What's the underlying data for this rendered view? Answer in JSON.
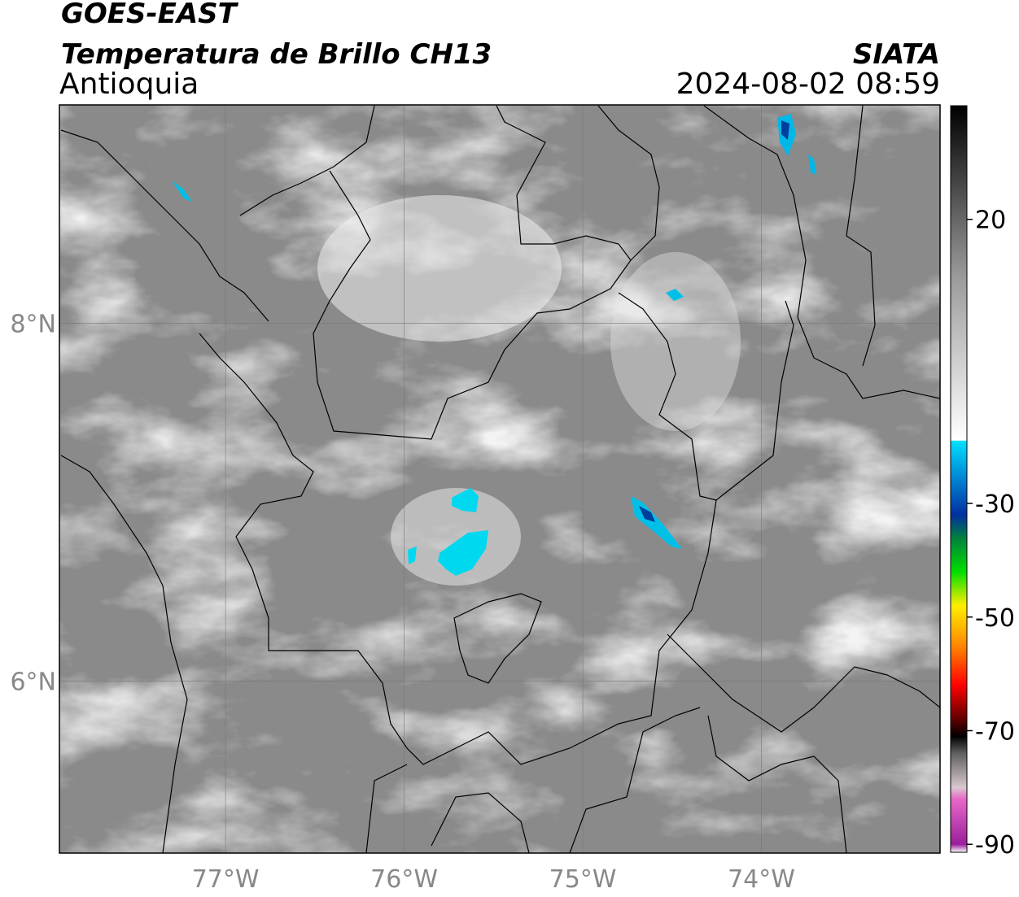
{
  "header": {
    "title": "GOES-EAST",
    "subtitle": "Temperatura de Brillo CH13",
    "region": "Antioquia",
    "source": "SIATA",
    "timestamp": "2024-08-02 08:59"
  },
  "map": {
    "xlim": [
      -77.93,
      -73.0
    ],
    "ylim": [
      5.04,
      9.22
    ],
    "xticks": [
      {
        "value": -77,
        "label": "77°W"
      },
      {
        "value": -76,
        "label": "76°W"
      },
      {
        "value": -75,
        "label": "75°W"
      },
      {
        "value": -74,
        "label": "74°W"
      }
    ],
    "yticks": [
      {
        "value": 8,
        "label": "8°N"
      },
      {
        "value": 6,
        "label": "6°N"
      }
    ],
    "grid": true
  },
  "colorbar": {
    "clim": [
      -91.4,
      40
    ],
    "ticks": [
      20,
      -30,
      -50,
      -70,
      -90
    ],
    "colormap": [
      {
        "value": -91.4,
        "color": "#ffffff"
      },
      {
        "value": -90,
        "color": "#9b1f9b"
      },
      {
        "value": -82,
        "color": "#e868c8"
      },
      {
        "value": -80,
        "color": "#d8c8d0"
      },
      {
        "value": -74,
        "color": "#606060"
      },
      {
        "value": -71,
        "color": "#000000"
      },
      {
        "value": -68,
        "color": "#600000"
      },
      {
        "value": -62,
        "color": "#ff0000"
      },
      {
        "value": -55,
        "color": "#ff8800"
      },
      {
        "value": -48,
        "color": "#ffee00"
      },
      {
        "value": -42,
        "color": "#00dd00"
      },
      {
        "value": -36,
        "color": "#008040"
      },
      {
        "value": -32,
        "color": "#0030a0"
      },
      {
        "value": -26,
        "color": "#0080d0"
      },
      {
        "value": -19,
        "color": "#00e0ff"
      },
      {
        "value": -18.9,
        "color": "#ffffff"
      },
      {
        "value": 10,
        "color": "#9a9a9a"
      },
      {
        "value": 40,
        "color": "#000000"
      }
    ]
  }
}
